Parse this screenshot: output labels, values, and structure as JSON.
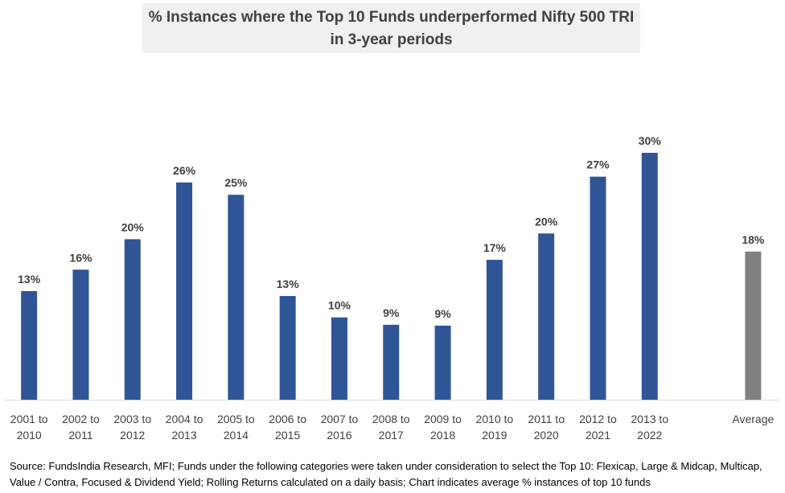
{
  "chart_data": {
    "type": "bar",
    "title": "% Instances where the Top 10 Funds underperformed Nifty 500 TRI in 3-year periods",
    "title_lines": [
      "% Instances where the Top 10 Funds underperformed Nifty 500 TRI",
      "in 3-year periods"
    ],
    "categories": [
      [
        "2001  to",
        "2010"
      ],
      [
        "2002  to",
        "2011"
      ],
      [
        "2003  to",
        "2012"
      ],
      [
        "2004  to",
        "2013"
      ],
      [
        "2005  to",
        "2014"
      ],
      [
        "2006  to",
        "2015"
      ],
      [
        "2007  to",
        "2016"
      ],
      [
        "2008  to",
        "2017"
      ],
      [
        "2009  to",
        "2018"
      ],
      [
        "2010  to",
        "2019"
      ],
      [
        "2011  to",
        "2020"
      ],
      [
        "2012  to",
        "2021"
      ],
      [
        "2013  to",
        "2022"
      ],
      [
        "Average",
        ""
      ]
    ],
    "values": [
      13.2,
      15.8,
      19.5,
      26.4,
      24.9,
      12.6,
      10.0,
      9.1,
      9.0,
      17.0,
      20.2,
      27.1,
      30.0,
      18.0
    ],
    "labels": [
      "13%",
      "16%",
      "20%",
      "26%",
      "25%",
      "13%",
      "10%",
      "9%",
      "9%",
      "17%",
      "20%",
      "27%",
      "30%",
      "18%"
    ],
    "colors": {
      "bar": "#2f5597",
      "average": "#808080"
    },
    "xlabel": "",
    "ylabel": "",
    "ylim": [
      0,
      30
    ],
    "grid": false,
    "legend": "none"
  },
  "source": "Source: FundsIndia Research, MFI; Funds under the following categories were taken under consideration to select the Top 10: Flexicap, Large & Midcap, Multicap, Value / Contra, Focused & Dividend Yield; Rolling Returns calculated on a daily basis; Chart indicates average % instances of top 10 funds"
}
